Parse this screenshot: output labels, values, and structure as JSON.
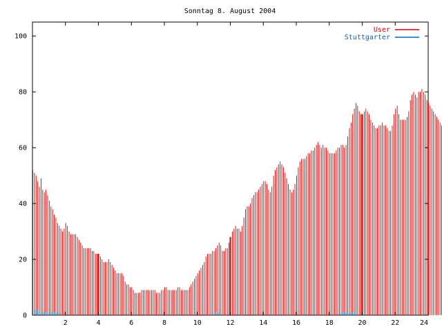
{
  "chart_data": {
    "type": "bar",
    "title": "Sonntag 8. August 2004",
    "xlabel": "",
    "ylabel": "",
    "xlim": [
      0,
      24
    ],
    "ylim": [
      0,
      105
    ],
    "x_ticks": [
      "2",
      "4",
      "6",
      "8",
      "10",
      "12",
      "14",
      "16",
      "18",
      "20",
      "22",
      "24"
    ],
    "y_ticks": [
      "0",
      "20",
      "40",
      "60",
      "80",
      "100"
    ],
    "grid": false,
    "legend_position": "top-right",
    "bar_step_hours": 0.1,
    "series": [
      {
        "name": "User",
        "color": "#cc0000",
        "values": [
          52,
          51,
          50,
          48,
          46,
          49,
          45,
          44,
          45,
          43,
          41,
          39,
          38,
          36,
          35,
          33,
          32,
          31,
          30,
          31,
          33,
          32,
          30,
          29,
          29,
          29,
          29,
          28,
          27,
          26,
          25,
          24,
          24,
          24,
          24,
          24,
          23,
          23,
          22,
          22,
          22,
          21,
          20,
          19,
          19,
          19,
          20,
          19,
          18,
          17,
          16,
          15,
          15,
          15,
          15,
          14,
          12,
          11,
          11,
          10,
          10,
          9,
          8,
          8,
          8,
          8,
          9,
          9,
          9,
          9,
          9,
          9,
          9,
          9,
          9,
          8,
          8,
          8,
          9,
          9,
          10,
          10,
          9,
          9,
          9,
          9,
          9,
          9,
          10,
          10,
          9,
          9,
          9,
          9,
          9,
          10,
          11,
          12,
          13,
          14,
          15,
          16,
          17,
          18,
          19,
          21,
          22,
          22,
          22,
          23,
          23,
          24,
          25,
          26,
          25,
          23,
          23,
          24,
          24,
          26,
          28,
          30,
          31,
          32,
          31,
          31,
          30,
          32,
          35,
          38,
          39,
          39,
          40,
          42,
          43,
          44,
          44,
          45,
          46,
          47,
          48,
          48,
          47,
          45,
          44,
          46,
          50,
          52,
          53,
          54,
          55,
          54,
          53,
          51,
          49,
          47,
          45,
          44,
          45,
          47,
          50,
          53,
          55,
          56,
          56,
          56,
          57,
          58,
          58,
          59,
          59,
          60,
          61,
          62,
          61,
          60,
          61,
          60,
          60,
          59,
          58,
          58,
          58,
          58,
          59,
          60,
          60,
          61,
          61,
          60,
          61,
          64,
          67,
          69,
          72,
          74,
          76,
          75,
          73,
          72,
          72,
          73,
          74,
          73,
          72,
          70,
          69,
          68,
          67,
          67,
          68,
          68,
          69,
          68,
          68,
          67,
          66,
          66,
          68,
          72,
          74,
          75,
          72,
          70,
          70,
          70,
          70,
          71,
          73,
          77,
          79,
          80,
          79,
          78,
          80,
          80,
          81,
          80,
          79,
          77,
          76,
          75,
          74,
          73,
          72,
          71,
          70,
          69,
          68,
          67,
          66,
          65,
          64,
          63,
          62,
          61,
          60
        ]
      },
      {
        "name": "Stuttgarter",
        "color": "#0066bb",
        "values": [
          2,
          2,
          2,
          2,
          1,
          1,
          1,
          1,
          1,
          1,
          1,
          1,
          1,
          1,
          1,
          1,
          1,
          0,
          0,
          0,
          0,
          0,
          0,
          0,
          0,
          0,
          0,
          0,
          0,
          0,
          0,
          0,
          0,
          0,
          0,
          0,
          0,
          0,
          0,
          0,
          0,
          0,
          0,
          0,
          0,
          0,
          0,
          0,
          0,
          0,
          0,
          0,
          0,
          0,
          0,
          0,
          0,
          0,
          0,
          0,
          0,
          0,
          0,
          0,
          0,
          0,
          0,
          0,
          0,
          0,
          0,
          0,
          0,
          0,
          0,
          0,
          0,
          0,
          0,
          0,
          0,
          0,
          0,
          0,
          0,
          0,
          0,
          0,
          0,
          0,
          0,
          0,
          0,
          0,
          0,
          0,
          0,
          0,
          0,
          0,
          0,
          0,
          0,
          0,
          0,
          0,
          0,
          0,
          0,
          0,
          0,
          1,
          1,
          1,
          0,
          0,
          0,
          0,
          0,
          0,
          0,
          0,
          0,
          0,
          0,
          0,
          0,
          0,
          0,
          0,
          0,
          0,
          0,
          0,
          0,
          0,
          0,
          0,
          0,
          0,
          0,
          0,
          0,
          0,
          0,
          0,
          0,
          0,
          0,
          0,
          0,
          0,
          0,
          0,
          0,
          0,
          0,
          0,
          0,
          0,
          0,
          0,
          0,
          0,
          0,
          0,
          0,
          0,
          0,
          0,
          0,
          0,
          0,
          0,
          0,
          0,
          0,
          0,
          0,
          0,
          0,
          0,
          0,
          0,
          0,
          0,
          1,
          1,
          1,
          1,
          1,
          1,
          1,
          1,
          1,
          1,
          0,
          0,
          0,
          0,
          0,
          0,
          0,
          0,
          0,
          0,
          0,
          0,
          0,
          0,
          0,
          0,
          0,
          0,
          0,
          0,
          0,
          0,
          0,
          0,
          0,
          0,
          0,
          0,
          0,
          0,
          0,
          0,
          0,
          0,
          0,
          0,
          0,
          0,
          0,
          0,
          0,
          0,
          0,
          0,
          0,
          0,
          0,
          0,
          0,
          0,
          0,
          0,
          0,
          0,
          0,
          0,
          0,
          0,
          0,
          0,
          0,
          0,
          0,
          0,
          0,
          0
        ]
      }
    ],
    "highlight_hours": [
      4,
      12,
      20
    ]
  }
}
